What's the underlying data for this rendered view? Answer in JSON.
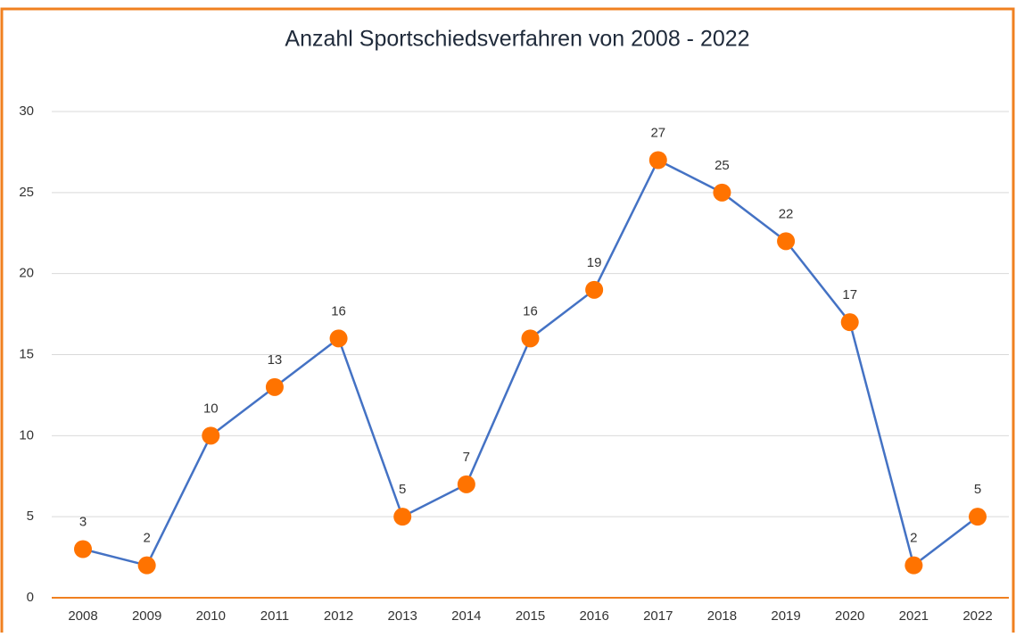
{
  "chart_data": {
    "type": "line",
    "title": "Anzahl Sportschiedsverfahren von 2008 - 2022",
    "categories": [
      "2008",
      "2009",
      "2010",
      "2011",
      "2012",
      "2013",
      "2014",
      "2015",
      "2016",
      "2017",
      "2018",
      "2019",
      "2020",
      "2021",
      "2022"
    ],
    "values": [
      3,
      2,
      10,
      13,
      16,
      5,
      7,
      16,
      19,
      27,
      25,
      22,
      17,
      2,
      5
    ],
    "color": "#4472c4",
    "marker_color": "#ff7300",
    "axis_color": "#f08020",
    "ylim": [
      0,
      30
    ],
    "yticks": [
      0,
      5,
      10,
      15,
      20,
      25,
      30
    ],
    "grid": true
  }
}
